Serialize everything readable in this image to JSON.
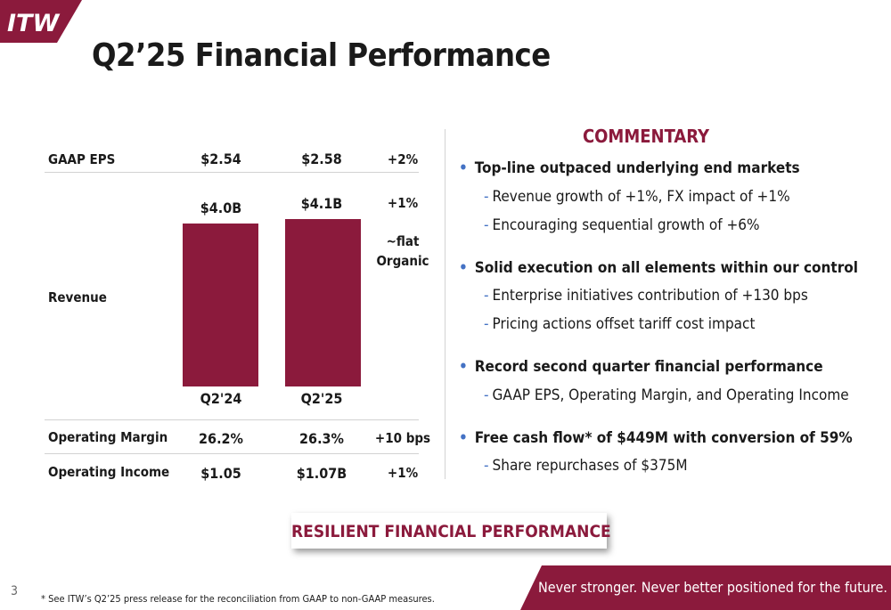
{
  "logo": {
    "text": "ITW",
    "color": "#8b1a3c"
  },
  "title": "Q2’25 Financial Performance",
  "table": {
    "eps": {
      "label": "GAAP EPS",
      "prior": "$2.54",
      "current": "$2.58",
      "change": "+2%"
    },
    "revenue": {
      "label": "Revenue",
      "prior_value": "$4.0B",
      "current_value": "$4.1B",
      "change": "+1%",
      "organic_line1": "~flat",
      "organic_line2": "Organic",
      "prior_period": "Q2'24",
      "current_period": "Q2'25"
    },
    "operating_margin": {
      "label": "Operating Margin",
      "prior": "26.2%",
      "current": "26.3%",
      "change": "+10 bps"
    },
    "operating_income": {
      "label": "Operating Income",
      "prior": "$1.05",
      "current": "$1.07B",
      "change": "+1%"
    }
  },
  "chart_data": {
    "type": "bar",
    "categories": [
      "Q2'24",
      "Q2'25"
    ],
    "values": [
      4.0,
      4.1
    ],
    "data_labels": [
      "$4.0B",
      "$4.1B"
    ],
    "title": "",
    "xlabel": "",
    "ylabel": "",
    "color": "#8b1a3c"
  },
  "commentary": {
    "title": "COMMENTARY",
    "bullets": [
      {
        "text": "Top-line outpaced underlying end markets",
        "subs": [
          "Revenue growth of +1%, FX impact of +1%",
          "Encouraging sequential growth of +6%"
        ]
      },
      {
        "text": "Solid execution on all elements within our control",
        "subs": [
          "Enterprise initiatives contribution of +130 bps",
          "Pricing actions offset tariff cost impact"
        ]
      },
      {
        "text": "Record second quarter financial performance",
        "subs": [
          "GAAP EPS, Operating Margin, and Operating Income"
        ]
      },
      {
        "text": "Free cash flow* of $449M with conversion of 59%",
        "subs": [
          "Share repurchases of $375M"
        ]
      }
    ]
  },
  "callout": "RESILIENT FINANCIAL PERFORMANCE",
  "tagline": "Never stronger. Never better positioned for the future.",
  "page_number": "3",
  "footnote": "* See ITW’s Q2’25 press release for the reconciliation from GAAP to non-GAAP measures.",
  "colors": {
    "accent": "#8b1a3c",
    "bullet": "#4472c4",
    "divider": "#d2d2d2"
  }
}
